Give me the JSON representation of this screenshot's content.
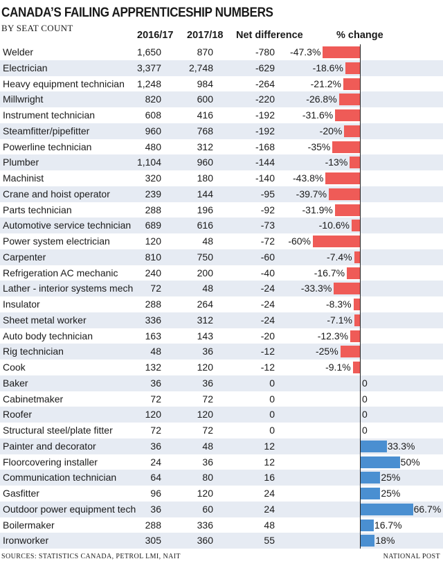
{
  "title": "CANADA’S FAILING APPRENTICESHIP NUMBERS",
  "subtitle": "BY SEAT COUNT",
  "headers": {
    "col_a": "2016/17",
    "col_b": "2017/18",
    "col_net": "Net difference",
    "col_pct": "% change"
  },
  "footer": {
    "sources": "SOURCES: STATISTICS CANADA, PETROL LMI, NAIT",
    "credit": "NATIONAL POST"
  },
  "colors": {
    "negative": "#ef5b57",
    "positive": "#4a8fd1",
    "stripe": "#e6ebf3"
  },
  "chart_data": {
    "type": "table",
    "columns": [
      "",
      "2016/17",
      "2017/18",
      "Net difference",
      "% change"
    ],
    "rows": [
      {
        "name": "Welder",
        "a": "1,650",
        "b": "870",
        "net": "-780",
        "pct": -47.3,
        "pct_label": "-47.3%"
      },
      {
        "name": "Electrician",
        "a": "3,377",
        "b": "2,748",
        "net": "-629",
        "pct": -18.6,
        "pct_label": "-18.6%"
      },
      {
        "name": "Heavy equipment technician",
        "a": "1,248",
        "b": "984",
        "net": "-264",
        "pct": -21.2,
        "pct_label": "-21.2%"
      },
      {
        "name": "Millwright",
        "a": "820",
        "b": "600",
        "net": "-220",
        "pct": -26.8,
        "pct_label": "-26.8%"
      },
      {
        "name": "Instrument technician",
        "a": "608",
        "b": "416",
        "net": "-192",
        "pct": -31.6,
        "pct_label": "-31.6%"
      },
      {
        "name": "Steamfitter/pipefitter",
        "a": "960",
        "b": "768",
        "net": "-192",
        "pct": -20,
        "pct_label": "-20%"
      },
      {
        "name": "Powerline technician",
        "a": "480",
        "b": "312",
        "net": "-168",
        "pct": -35,
        "pct_label": "-35%"
      },
      {
        "name": "Plumber",
        "a": "1,104",
        "b": "960",
        "net": "-144",
        "pct": -13,
        "pct_label": "-13%"
      },
      {
        "name": "Machinist",
        "a": "320",
        "b": "180",
        "net": "-140",
        "pct": -43.8,
        "pct_label": "-43.8%"
      },
      {
        "name": "Crane and hoist operator",
        "a": "239",
        "b": "144",
        "net": "-95",
        "pct": -39.7,
        "pct_label": "-39.7%"
      },
      {
        "name": "Parts technician",
        "a": "288",
        "b": "196",
        "net": "-92",
        "pct": -31.9,
        "pct_label": "-31.9%"
      },
      {
        "name": "Automotive service technician",
        "a": "689",
        "b": "616",
        "net": "-73",
        "pct": -10.6,
        "pct_label": "-10.6%"
      },
      {
        "name": "Power system electrician",
        "a": "120",
        "b": "48",
        "net": "-72",
        "pct": -60,
        "pct_label": "-60%"
      },
      {
        "name": "Carpenter",
        "a": "810",
        "b": "750",
        "net": "-60",
        "pct": -7.4,
        "pct_label": "-7.4%"
      },
      {
        "name": "Refrigeration AC mechanic",
        "a": "240",
        "b": "200",
        "net": "-40",
        "pct": -16.7,
        "pct_label": "-16.7%"
      },
      {
        "name": "Lather - interior systems mech",
        "a": "72",
        "b": "48",
        "net": "-24",
        "pct": -33.3,
        "pct_label": "-33.3%"
      },
      {
        "name": "Insulator",
        "a": "288",
        "b": "264",
        "net": "-24",
        "pct": -8.3,
        "pct_label": "-8.3%"
      },
      {
        "name": "Sheet metal worker",
        "a": "336",
        "b": "312",
        "net": "-24",
        "pct": -7.1,
        "pct_label": "-7.1%"
      },
      {
        "name": "Auto body technician",
        "a": "163",
        "b": "143",
        "net": "-20",
        "pct": -12.3,
        "pct_label": "-12.3%"
      },
      {
        "name": "Rig technician",
        "a": "48",
        "b": "36",
        "net": "-12",
        "pct": -25,
        "pct_label": "-25%"
      },
      {
        "name": "Cook",
        "a": "132",
        "b": "120",
        "net": "-12",
        "pct": -9.1,
        "pct_label": "-9.1%"
      },
      {
        "name": "Baker",
        "a": "36",
        "b": "36",
        "net": "0",
        "pct": 0,
        "pct_label": "0"
      },
      {
        "name": "Cabinetmaker",
        "a": "72",
        "b": "72",
        "net": "0",
        "pct": 0,
        "pct_label": "0"
      },
      {
        "name": "Roofer",
        "a": "120",
        "b": "120",
        "net": "0",
        "pct": 0,
        "pct_label": "0"
      },
      {
        "name": "Structural steel/plate fitter",
        "a": "72",
        "b": "72",
        "net": "0",
        "pct": 0,
        "pct_label": "0"
      },
      {
        "name": "Painter and decorator",
        "a": "36",
        "b": "48",
        "net": "12",
        "pct": 33.3,
        "pct_label": "33.3%"
      },
      {
        "name": "Floorcovering installer",
        "a": "24",
        "b": "36",
        "net": "12",
        "pct": 50,
        "pct_label": "50%"
      },
      {
        "name": "Communication technician",
        "a": "64",
        "b": "80",
        "net": "16",
        "pct": 25,
        "pct_label": "25%"
      },
      {
        "name": "Gasfitter",
        "a": "96",
        "b": "120",
        "net": "24",
        "pct": 25,
        "pct_label": "25%"
      },
      {
        "name": "Outdoor power equipment tech",
        "a": "36",
        "b": "60",
        "net": "24",
        "pct": 66.7,
        "pct_label": "66.7%"
      },
      {
        "name": "Boilermaker",
        "a": "288",
        "b": "336",
        "net": "48",
        "pct": 16.7,
        "pct_label": "16.7%"
      },
      {
        "name": "Ironworker",
        "a": "305",
        "b": "360",
        "net": "55",
        "pct": 18,
        "pct_label": "18%"
      }
    ]
  }
}
